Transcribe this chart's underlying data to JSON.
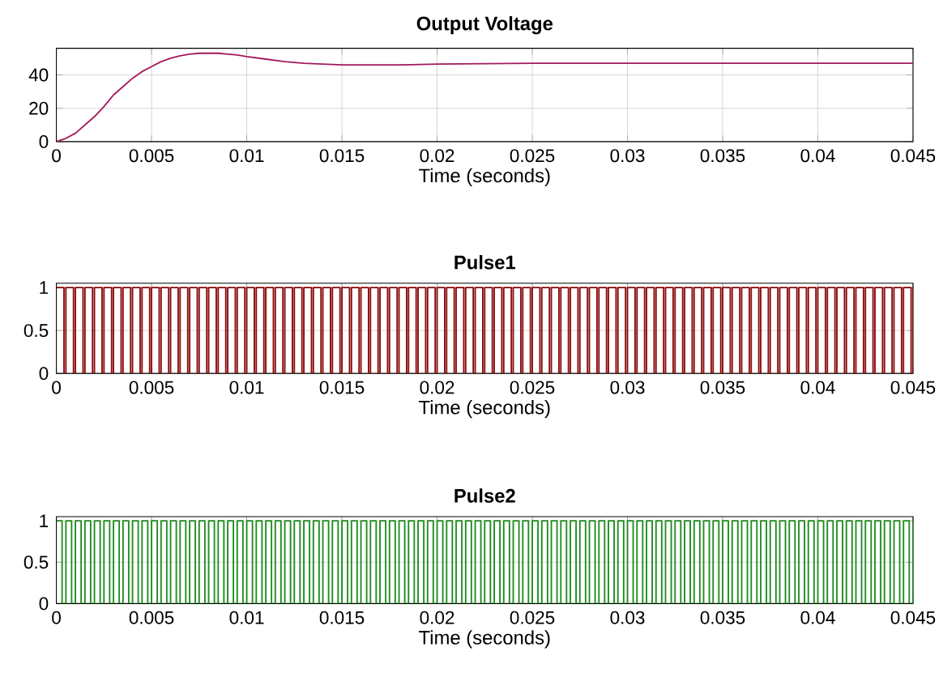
{
  "chart_data": [
    {
      "type": "line",
      "title": "Output Voltage",
      "xlabel": "Time (seconds)",
      "color": "#a3195b",
      "grid": true,
      "x": [
        0,
        0.0005,
        0.001,
        0.0015,
        0.002,
        0.0025,
        0.003,
        0.0035,
        0.004,
        0.0045,
        0.005,
        0.0055,
        0.006,
        0.0065,
        0.007,
        0.0075,
        0.008,
        0.0085,
        0.009,
        0.0095,
        0.01,
        0.011,
        0.012,
        0.013,
        0.014,
        0.015,
        0.016,
        0.018,
        0.02,
        0.025,
        0.03,
        0.035,
        0.04,
        0.045
      ],
      "values": [
        0,
        2,
        5,
        10,
        15,
        21,
        28,
        33,
        38,
        42,
        45,
        48,
        50,
        51.5,
        52.5,
        53,
        53,
        53,
        52.5,
        52,
        51,
        49.5,
        48,
        47,
        46.5,
        46,
        46,
        46,
        46.5,
        47,
        47,
        47,
        47,
        47
      ],
      "xlim": [
        0,
        0.045
      ],
      "xticks": [
        0,
        0.005,
        0.01,
        0.015,
        0.02,
        0.025,
        0.03,
        0.035,
        0.04,
        0.045
      ],
      "ylim": [
        0,
        56
      ],
      "yticks": [
        0,
        20,
        40
      ]
    },
    {
      "type": "step",
      "title": "Pulse1",
      "xlabel": "Time (seconds)",
      "color": "#8b0a0a",
      "grid": true,
      "x": [
        0,
        0.0004,
        0.0005,
        0.0009,
        0.001,
        0.0014,
        0.0015,
        0.0019,
        0.002,
        0.0024,
        0.0025,
        0.0029,
        0.003,
        0.0034,
        0.0035,
        0.0039,
        0.004,
        0.0044,
        0.0045,
        0.0049,
        0.005,
        0.0054,
        0.0055,
        0.0059,
        0.006,
        0.0064,
        0.0065,
        0.0069,
        0.007,
        0.0074,
        0.0075,
        0.0079,
        0.008,
        0.0084,
        0.0085,
        0.0089,
        0.009,
        0.0094,
        0.0095,
        0.0099,
        0.01,
        0.0104,
        0.0105,
        0.0109,
        0.011,
        0.0114,
        0.0115,
        0.0119,
        0.012,
        0.0124,
        0.0125,
        0.0129,
        0.013,
        0.0134,
        0.0135,
        0.0139,
        0.014,
        0.0144,
        0.0145,
        0.0149,
        0.015,
        0.0154,
        0.0155,
        0.0159,
        0.016,
        0.0164,
        0.0165,
        0.0169,
        0.017,
        0.0174,
        0.0175,
        0.0179,
        0.018,
        0.0184,
        0.0185,
        0.0189,
        0.019,
        0.0194,
        0.0195,
        0.0199,
        0.02,
        0.0204,
        0.0205,
        0.0209,
        0.021,
        0.0214,
        0.0215,
        0.0219,
        0.022,
        0.0224,
        0.0225,
        0.0229,
        0.023,
        0.0234,
        0.0235,
        0.0239,
        0.024,
        0.0244,
        0.0245,
        0.0249,
        0.025,
        0.0254,
        0.0255,
        0.0259,
        0.026,
        0.0264,
        0.0265,
        0.0269,
        0.027,
        0.0274,
        0.0275,
        0.0279,
        0.028,
        0.0284,
        0.0285,
        0.0289,
        0.029,
        0.0294,
        0.0295,
        0.0299,
        0.03,
        0.0304,
        0.0305,
        0.0309,
        0.031,
        0.0314,
        0.0315,
        0.0319,
        0.032,
        0.0324,
        0.0325,
        0.0329,
        0.033,
        0.0334,
        0.0335,
        0.0339,
        0.034,
        0.0344,
        0.0345,
        0.0349,
        0.035,
        0.0354,
        0.0355,
        0.0359,
        0.036,
        0.0364,
        0.0365,
        0.0369,
        0.037,
        0.0374,
        0.0375,
        0.0379,
        0.038,
        0.0384,
        0.0385,
        0.0389,
        0.039,
        0.0394,
        0.0395,
        0.0399,
        0.04,
        0.0404,
        0.0405,
        0.0409,
        0.041,
        0.0414,
        0.0415,
        0.0419,
        0.042,
        0.0424,
        0.0425,
        0.0429,
        0.043,
        0.0434,
        0.0435,
        0.0439,
        0.044,
        0.0444,
        0.0445,
        0.0449,
        0.045
      ],
      "values": [
        1,
        0,
        1,
        0,
        1,
        0,
        1,
        0,
        1,
        0,
        1,
        0,
        1,
        0,
        1,
        0,
        1,
        0,
        1,
        0,
        1,
        0,
        1,
        0,
        1,
        0,
        1,
        0,
        1,
        0,
        1,
        0,
        1,
        0,
        1,
        0,
        1,
        0,
        1,
        0,
        1,
        0,
        1,
        0,
        1,
        0,
        1,
        0,
        1,
        0,
        1,
        0,
        1,
        0,
        1,
        0,
        1,
        0,
        1,
        0,
        1,
        0,
        1,
        0,
        1,
        0,
        1,
        0,
        1,
        0,
        1,
        0,
        1,
        0,
        1,
        0,
        1,
        0,
        1,
        0,
        1,
        0,
        1,
        0,
        1,
        0,
        1,
        0,
        1,
        0,
        1,
        0,
        1,
        0,
        1,
        0,
        1,
        0,
        1,
        0,
        1,
        0,
        1,
        0,
        1,
        0,
        1,
        0,
        1,
        0,
        1,
        0,
        1,
        0,
        1,
        0,
        1,
        0,
        1,
        0,
        1,
        0,
        1,
        0,
        1,
        0,
        1,
        0,
        1,
        0,
        1,
        0,
        1,
        0,
        1,
        0,
        1,
        0,
        1,
        0,
        1,
        0,
        1,
        0,
        1,
        0,
        1,
        0,
        1,
        0,
        1,
        0,
        1,
        0,
        1,
        0,
        1,
        0,
        1,
        0,
        1,
        0,
        1,
        0,
        1,
        0,
        1,
        0,
        1,
        0,
        1,
        0,
        1,
        0,
        1,
        0,
        1,
        0,
        1,
        0,
        1
      ],
      "xlim": [
        0,
        0.045
      ],
      "xticks": [
        0,
        0.005,
        0.01,
        0.015,
        0.02,
        0.025,
        0.03,
        0.035,
        0.04,
        0.045
      ],
      "ylim": [
        0,
        1.05
      ],
      "yticks": [
        0,
        0.5,
        1
      ]
    },
    {
      "type": "step",
      "title": "Pulse2",
      "xlabel": "Time (seconds)",
      "color": "#1e8c1e",
      "grid": true,
      "x": [
        0,
        0.0003,
        0.0005,
        0.0008,
        0.001,
        0.0013,
        0.0015,
        0.0018,
        0.002,
        0.0023,
        0.0025,
        0.0028,
        0.003,
        0.0033,
        0.0035,
        0.0038,
        0.004,
        0.0043,
        0.0045,
        0.0048,
        0.005,
        0.0053,
        0.0055,
        0.0058,
        0.006,
        0.0063,
        0.0065,
        0.0068,
        0.007,
        0.0073,
        0.0075,
        0.0078,
        0.008,
        0.0083,
        0.0085,
        0.0088,
        0.009,
        0.0093,
        0.0095,
        0.0098,
        0.01,
        0.0103,
        0.0105,
        0.0108,
        0.011,
        0.0113,
        0.0115,
        0.0118,
        0.012,
        0.0123,
        0.0125,
        0.0128,
        0.013,
        0.0133,
        0.0135,
        0.0138,
        0.014,
        0.0143,
        0.0145,
        0.0148,
        0.015,
        0.0153,
        0.0155,
        0.0158,
        0.016,
        0.0163,
        0.0165,
        0.0168,
        0.017,
        0.0173,
        0.0175,
        0.0178,
        0.018,
        0.0183,
        0.0185,
        0.0188,
        0.019,
        0.0193,
        0.0195,
        0.0198,
        0.02,
        0.0203,
        0.0205,
        0.0208,
        0.021,
        0.0213,
        0.0215,
        0.0218,
        0.022,
        0.0223,
        0.0225,
        0.0228,
        0.023,
        0.0233,
        0.0235,
        0.0238,
        0.024,
        0.0243,
        0.0245,
        0.0248,
        0.025,
        0.0253,
        0.0255,
        0.0258,
        0.026,
        0.0263,
        0.0265,
        0.0268,
        0.027,
        0.0273,
        0.0275,
        0.0278,
        0.028,
        0.0283,
        0.0285,
        0.0288,
        0.029,
        0.0293,
        0.0295,
        0.0298,
        0.03,
        0.0303,
        0.0305,
        0.0308,
        0.031,
        0.0313,
        0.0315,
        0.0318,
        0.032,
        0.0323,
        0.0325,
        0.0328,
        0.033,
        0.0333,
        0.0335,
        0.0338,
        0.034,
        0.0343,
        0.0345,
        0.0348,
        0.035,
        0.0353,
        0.0355,
        0.0358,
        0.036,
        0.0363,
        0.0365,
        0.0368,
        0.037,
        0.0373,
        0.0375,
        0.0378,
        0.038,
        0.0383,
        0.0385,
        0.0388,
        0.039,
        0.0393,
        0.0395,
        0.0398,
        0.04,
        0.0403,
        0.0405,
        0.0408,
        0.041,
        0.0413,
        0.0415,
        0.0418,
        0.042,
        0.0423,
        0.0425,
        0.0428,
        0.043,
        0.0433,
        0.0435,
        0.0438,
        0.044,
        0.0443,
        0.0445,
        0.0448,
        0.045
      ],
      "values": [
        1,
        0,
        1,
        0,
        1,
        0,
        1,
        0,
        1,
        0,
        1,
        0,
        1,
        0,
        1,
        0,
        1,
        0,
        1,
        0,
        1,
        0,
        1,
        0,
        1,
        0,
        1,
        0,
        1,
        0,
        1,
        0,
        1,
        0,
        1,
        0,
        1,
        0,
        1,
        0,
        1,
        0,
        1,
        0,
        1,
        0,
        1,
        0,
        1,
        0,
        1,
        0,
        1,
        0,
        1,
        0,
        1,
        0,
        1,
        0,
        1,
        0,
        1,
        0,
        1,
        0,
        1,
        0,
        1,
        0,
        1,
        0,
        1,
        0,
        1,
        0,
        1,
        0,
        1,
        0,
        1,
        0,
        1,
        0,
        1,
        0,
        1,
        0,
        1,
        0,
        1,
        0,
        1,
        0,
        1,
        0,
        1,
        0,
        1,
        0,
        1,
        0,
        1,
        0,
        1,
        0,
        1,
        0,
        1,
        0,
        1,
        0,
        1,
        0,
        1,
        0,
        1,
        0,
        1,
        0,
        1,
        0,
        1,
        0,
        1,
        0,
        1,
        0,
        1,
        0,
        1,
        0,
        1,
        0,
        1,
        0,
        1,
        0,
        1,
        0,
        1,
        0,
        1,
        0,
        1,
        0,
        1,
        0,
        1,
        0,
        1,
        0,
        1,
        0,
        1,
        0,
        1,
        0,
        1,
        0,
        1,
        0,
        1,
        0,
        1,
        0,
        1,
        0,
        1,
        0,
        1,
        0,
        1,
        0,
        1,
        0,
        1,
        0,
        1,
        0,
        1
      ],
      "xlim": [
        0,
        0.045
      ],
      "xticks": [
        0,
        0.005,
        0.01,
        0.015,
        0.02,
        0.025,
        0.03,
        0.035,
        0.04,
        0.045
      ],
      "ylim": [
        0,
        1.05
      ],
      "yticks": [
        0,
        0.5,
        1
      ]
    }
  ]
}
